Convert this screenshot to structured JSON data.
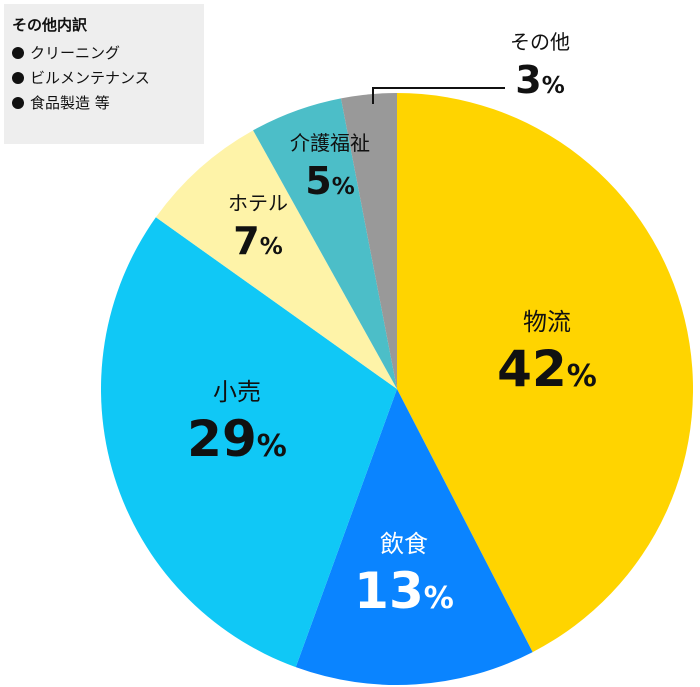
{
  "legend": {
    "title": "その他内訳",
    "items": [
      "クリーニング",
      "ビルメンテナンス",
      "食品製造 等"
    ]
  },
  "colors": {
    "logistics": "#FFD400",
    "food": "#0A84FF",
    "retail": "#10C8F6",
    "hotel": "#FEF3A8",
    "welfare": "#4CBEC8",
    "other": "#999999",
    "label_dark": "#111111",
    "label_light": "#ffffff"
  },
  "chart_data": {
    "type": "pie",
    "unit": "%",
    "start": "12 o'clock",
    "direction": "clockwise",
    "slices": [
      {
        "name": "物流",
        "value": 42,
        "color": "#FFD400",
        "text_color": "#111111"
      },
      {
        "name": "飲食",
        "value": 13,
        "color": "#0A84FF",
        "text_color": "#ffffff"
      },
      {
        "name": "小売",
        "value": 29,
        "color": "#10C8F6",
        "text_color": "#111111"
      },
      {
        "name": "ホテル",
        "value": 7,
        "color": "#FEF3A8",
        "text_color": "#111111"
      },
      {
        "name": "介護福祉",
        "value": 5,
        "color": "#4CBEC8",
        "text_color": "#111111"
      },
      {
        "name": "その他",
        "value": 3,
        "color": "#999999",
        "text_color": "#111111"
      }
    ]
  }
}
